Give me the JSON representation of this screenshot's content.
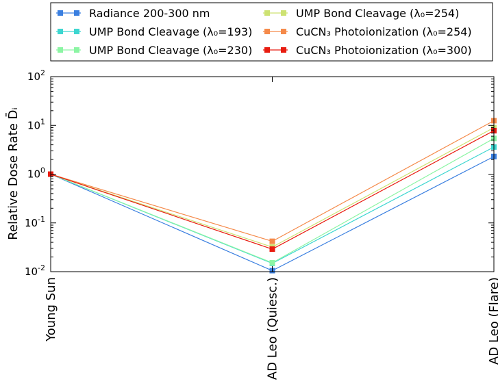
{
  "chart_data": {
    "type": "line",
    "ylabel": "Relative Dose Rate D̄ᵢ",
    "yscale": "log",
    "ylim": [
      0.01,
      100
    ],
    "y_ticks": [
      {
        "base": "10",
        "exp": "2"
      },
      {
        "base": "10",
        "exp": "1"
      },
      {
        "base": "10",
        "exp": "0"
      },
      {
        "base": "10",
        "exp": "-1"
      },
      {
        "base": "10",
        "exp": "-2"
      }
    ],
    "y_tick_values": [
      100,
      10,
      1,
      0.1,
      0.01
    ],
    "categories": [
      "Young Sun",
      "AD Leo (Quiesc.)",
      "AD Leo (Flare)"
    ],
    "grid": false,
    "legend_location": "top",
    "series": [
      {
        "name": "Radiance 200-300 nm",
        "color": "#3a7fe0",
        "values": [
          1.0,
          0.0105,
          2.3
        ]
      },
      {
        "name": "UMP Bond Cleavage (λ₀=193)",
        "color": "#3dd6d0",
        "values": [
          1.0,
          0.0148,
          3.6
        ]
      },
      {
        "name": "UMP Bond Cleavage (λ₀=230)",
        "color": "#8cf5a4",
        "values": [
          1.0,
          0.0152,
          5.4
        ]
      },
      {
        "name": "UMP Bond Cleavage (λ₀=254)",
        "color": "#cde272",
        "values": [
          1.0,
          0.032,
          9.0
        ]
      },
      {
        "name": "CuCN₃ Photoionization (λ₀=254)",
        "color": "#f58a4a",
        "values": [
          1.0,
          0.042,
          12.5
        ]
      },
      {
        "name": "CuCN₃ Photoionization (λ₀=300)",
        "color": "#e81c10",
        "values": [
          1.0,
          0.029,
          7.8
        ]
      }
    ]
  }
}
